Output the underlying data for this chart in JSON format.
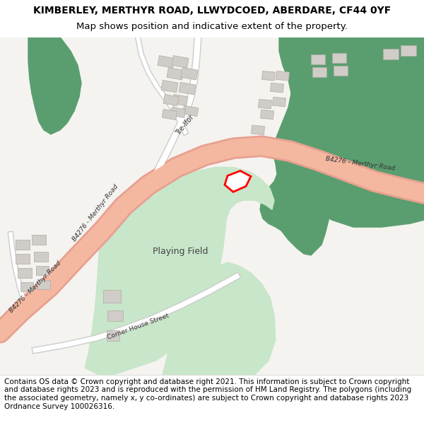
{
  "title_line1": "KIMBERLEY, MERTHYR ROAD, LLWYDCOED, ABERDARE, CF44 0YF",
  "title_line2": "Map shows position and indicative extent of the property.",
  "footer_text": "Contains OS data © Crown copyright and database right 2021. This information is subject to Crown copyright and database rights 2023 and is reproduced with the permission of HM Land Registry. The polygons (including the associated geometry, namely x, y co-ordinates) are subject to Crown copyright and database rights 2023 Ordnance Survey 100026316.",
  "map_bg": "#f5f3f0",
  "road_color": "#f4b8a0",
  "road_edge_color": "#e8a090",
  "green_dark": "#5a9e6f",
  "green_light": "#c8e6c9",
  "building_color": "#d0ccc8",
  "building_edge": "#b0aba6",
  "plot_color": "#ff0000",
  "white": "#ffffff",
  "footer_bg": "#ffffff",
  "title_fontsize": 10,
  "footer_fontsize": 7.5
}
